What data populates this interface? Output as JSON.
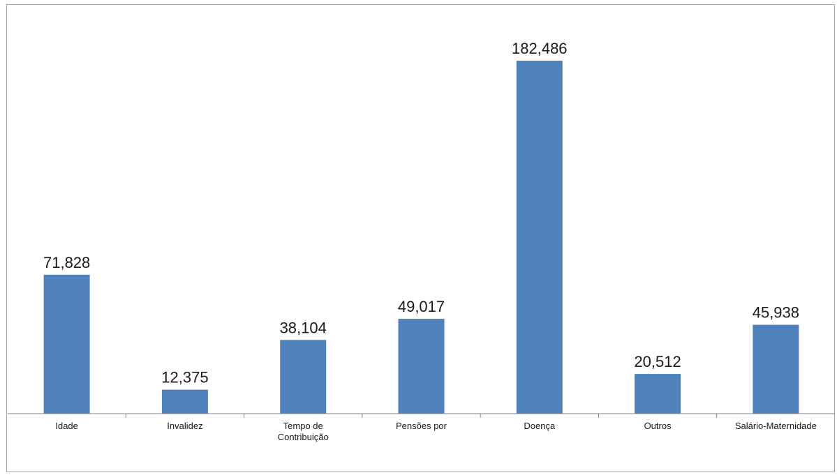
{
  "chart_data": {
    "type": "bar",
    "categories": [
      [
        "Idade"
      ],
      [
        "Invalidez"
      ],
      [
        "Tempo de",
        "Contribuição"
      ],
      [
        "Pensões por"
      ],
      [
        "Doença"
      ],
      [
        "Outros"
      ],
      [
        "Salário-Maternidade"
      ]
    ],
    "values": [
      71828,
      12375,
      38104,
      49017,
      182486,
      20512,
      45938
    ],
    "value_labels": [
      "71,828",
      "12,375",
      "38,104",
      "49,017",
      "182,486",
      "20,512",
      "45,938"
    ],
    "title": "",
    "xlabel": "",
    "ylabel": "",
    "ylim": [
      0,
      200000
    ],
    "grid": false,
    "legend": "none",
    "colors": {
      "bar": "#4f81bd",
      "axis": "#808080",
      "text": "#1a1a1a"
    }
  }
}
